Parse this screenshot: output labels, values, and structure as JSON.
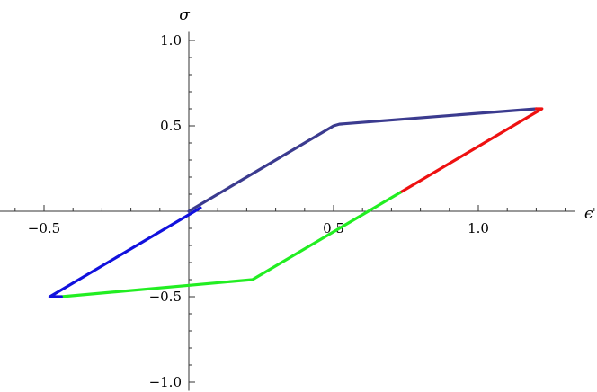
{
  "chart_data": {
    "type": "line",
    "xlabel": "ϵ",
    "ylabel": "σ",
    "xlim": [
      -0.65,
      1.45
    ],
    "ylim": [
      -1.05,
      1.05
    ],
    "x_major_ticks": [
      {
        "value": -0.5,
        "label": "−0.5"
      },
      {
        "value": 0.5,
        "label": "0.5"
      },
      {
        "value": 1.0,
        "label": "1.0"
      }
    ],
    "y_major_ticks": [
      {
        "value": 1.0,
        "label": "1.0"
      },
      {
        "value": 0.5,
        "label": "0.5"
      },
      {
        "value": -0.5,
        "label": "−0.5"
      },
      {
        "value": -1.0,
        "label": "−1.0"
      }
    ],
    "series": [
      {
        "color": "#3b3b8f",
        "points": [
          [
            0.0,
            0.0
          ],
          [
            0.5,
            0.5
          ],
          [
            0.52,
            0.51
          ],
          [
            1.2,
            0.6
          ]
        ]
      },
      {
        "color": "#ee1111",
        "points": [
          [
            1.2,
            0.6
          ],
          [
            1.22,
            0.6
          ],
          [
            0.73,
            0.11
          ]
        ]
      },
      {
        "color": "#22ee22",
        "points": [
          [
            0.73,
            0.11
          ],
          [
            0.22,
            -0.4
          ],
          [
            -0.44,
            -0.5
          ]
        ]
      },
      {
        "color": "#1111dd",
        "points": [
          [
            -0.44,
            -0.5
          ],
          [
            -0.48,
            -0.5
          ],
          [
            0.04,
            0.02
          ]
        ]
      }
    ],
    "grid": false,
    "legend": "none"
  }
}
